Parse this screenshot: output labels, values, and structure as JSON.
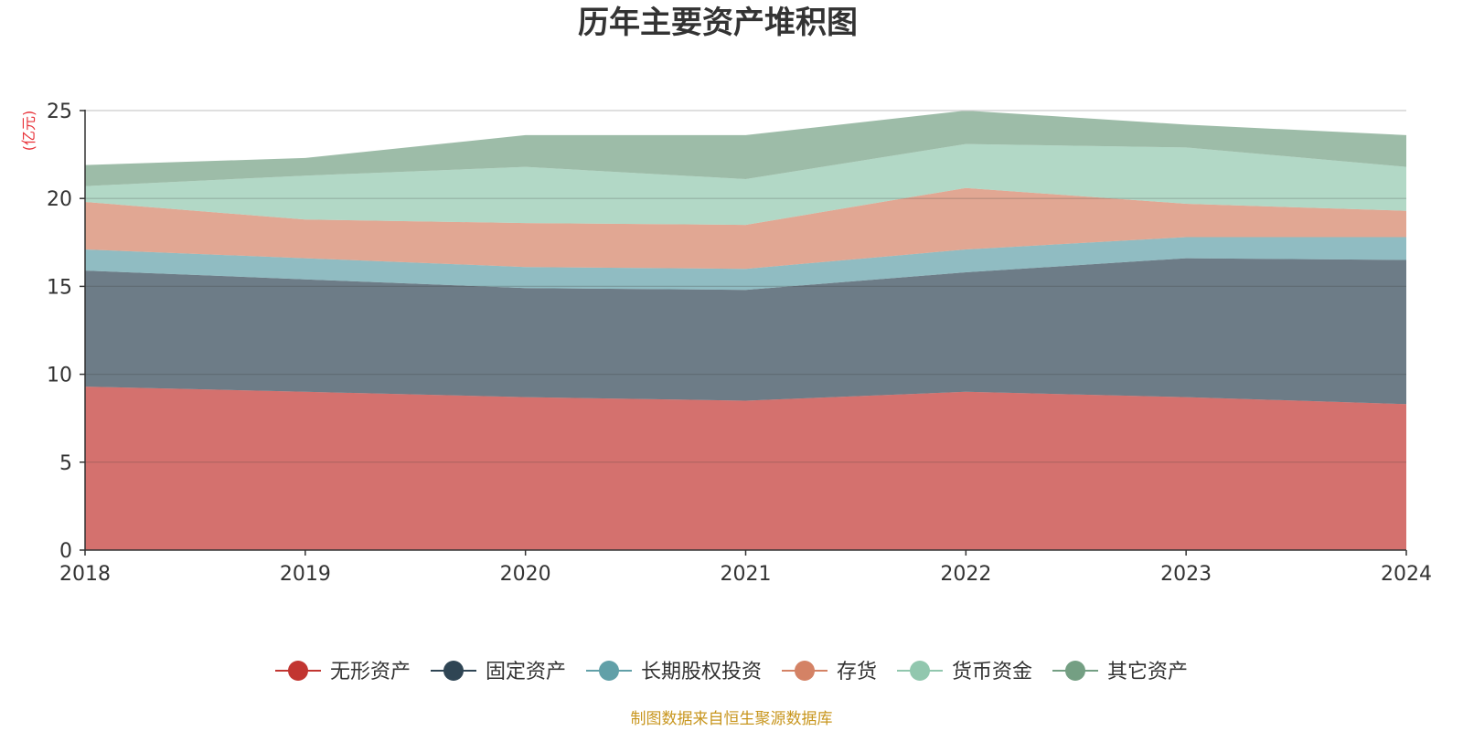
{
  "chart_data": {
    "type": "area",
    "stacked": true,
    "title": "历年主要资产堆积图",
    "unit_label": "(亿元)",
    "x": [
      "2018",
      "2019",
      "2020",
      "2021",
      "2022",
      "2023",
      "2024"
    ],
    "y_ticks": [
      "0",
      "5",
      "10",
      "15",
      "20",
      "25"
    ],
    "ylim": [
      0,
      25
    ],
    "grid": true,
    "legend_position": "bottom",
    "series": [
      {
        "name": "无形资产",
        "color": "#c23531",
        "values": [
          9.3,
          9.0,
          8.7,
          8.5,
          9.0,
          8.7,
          8.3
        ]
      },
      {
        "name": "固定资产",
        "color": "#2f4554",
        "values": [
          6.6,
          6.4,
          6.2,
          6.3,
          6.8,
          7.9,
          8.2
        ]
      },
      {
        "name": "长期股权投资",
        "color": "#61a0a8",
        "values": [
          1.2,
          1.2,
          1.2,
          1.2,
          1.3,
          1.2,
          1.3
        ]
      },
      {
        "name": "存货",
        "color": "#d48265",
        "values": [
          2.7,
          2.2,
          2.5,
          2.5,
          3.5,
          1.9,
          1.5
        ]
      },
      {
        "name": "货币资金",
        "color": "#91c7ae",
        "values": [
          0.9,
          2.5,
          3.2,
          2.6,
          2.5,
          3.2,
          2.5
        ]
      },
      {
        "name": "其它资产",
        "color": "#749f83",
        "values": [
          1.2,
          1.0,
          1.8,
          2.5,
          1.9,
          1.3,
          1.8
        ]
      }
    ]
  },
  "source_note": "制图数据来自恒生聚源数据库"
}
